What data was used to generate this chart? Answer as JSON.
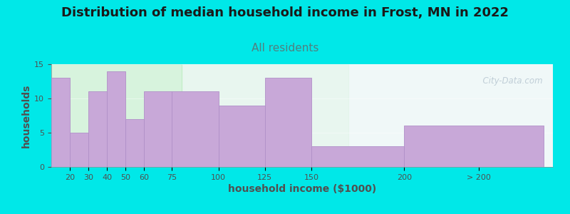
{
  "title": "Distribution of median household income in Frost, MN in 2022",
  "subtitle": "All residents",
  "xlabel": "household income ($1000)",
  "ylabel": "households",
  "bar_color": "#c8a8d8",
  "bar_edge_color": "#b090c8",
  "background_color": "#00e8e8",
  "plot_bg_left": "#d8f0d8",
  "plot_bg_right": "#f0f8f8",
  "bar_values": [
    13,
    5,
    11,
    14,
    7,
    11,
    11,
    9,
    13,
    3,
    6
  ],
  "bar_widths": [
    10,
    10,
    10,
    10,
    10,
    15,
    25,
    25,
    25,
    50,
    75
  ],
  "bar_lefts": [
    10,
    20,
    30,
    40,
    50,
    60,
    75,
    100,
    125,
    150,
    200
  ],
  "xlim": [
    10,
    280
  ],
  "ylim": [
    0,
    15
  ],
  "yticks": [
    0,
    5,
    10,
    15
  ],
  "xtick_positions": [
    20,
    30,
    40,
    50,
    60,
    75,
    100,
    125,
    150,
    200,
    240
  ],
  "xtick_labels": [
    "20",
    "30",
    "40",
    "50",
    "60",
    "75",
    "100",
    "125",
    "150",
    "200",
    "> 200"
  ],
  "title_fontsize": 13,
  "subtitle_fontsize": 11,
  "axis_label_fontsize": 10,
  "tick_fontsize": 8,
  "watermark": "  City-Data.com"
}
